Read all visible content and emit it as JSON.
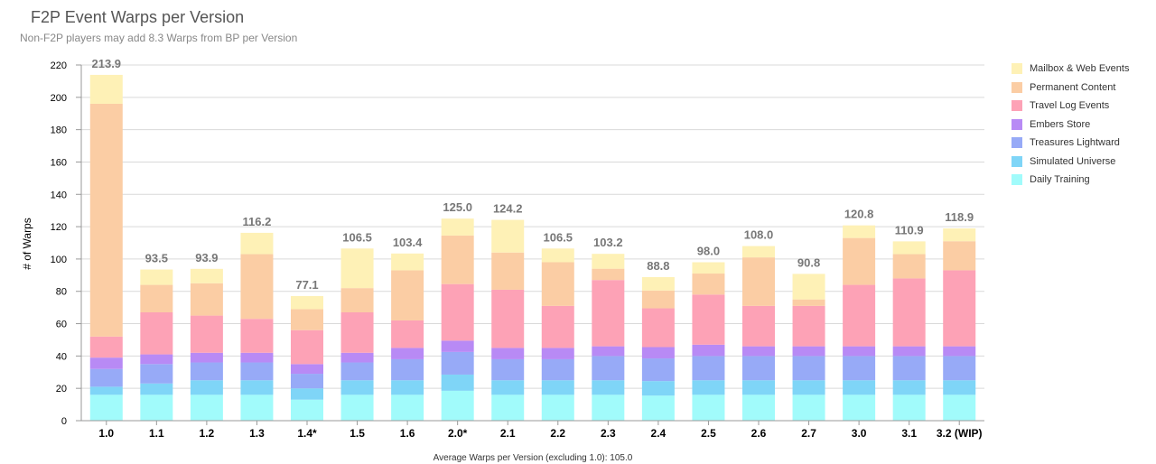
{
  "chart_data": {
    "type": "bar",
    "stacked": true,
    "title": "F2P Event Warps per Version",
    "subtitle": "Non-F2P players may add 8.3 Warps from BP per Version",
    "ylabel": "# of Warps",
    "footer": "Average Warps per Version (excluding 1.0): 105.0",
    "ylim": [
      0,
      220
    ],
    "yticks": [
      0,
      20,
      40,
      60,
      80,
      100,
      120,
      140,
      160,
      180,
      200,
      220
    ],
    "grid": true,
    "legend_position": "right",
    "categories": [
      "1.0",
      "1.1",
      "1.2",
      "1.3",
      "1.4*",
      "1.5",
      "1.6",
      "2.0*",
      "2.1",
      "2.2",
      "2.3",
      "2.4",
      "2.5",
      "2.6",
      "2.7",
      "3.0",
      "3.1",
      "3.2 (WIP)"
    ],
    "totals": [
      "213.9",
      "93.5",
      "93.9",
      "116.2",
      "77.1",
      "106.5",
      "103.4",
      "125.0",
      "124.2",
      "106.5",
      "103.2",
      "88.8",
      "98.0",
      "108.0",
      "90.8",
      "120.8",
      "110.9",
      "118.9"
    ],
    "series": [
      {
        "name": "Daily Training",
        "color": "#a1fbfb",
        "values": [
          16,
          16,
          16,
          16,
          13,
          16,
          16,
          18.5,
          16,
          16,
          16,
          15.5,
          16,
          16,
          16,
          16,
          16,
          16
        ]
      },
      {
        "name": "Simulated Universe",
        "color": "#7fd5f7",
        "values": [
          5,
          7,
          9,
          9,
          7,
          9,
          9,
          10,
          9,
          9,
          9,
          9,
          9,
          9,
          9,
          9,
          9,
          9
        ]
      },
      {
        "name": "Treasures Lightward",
        "color": "#97aaf7",
        "values": [
          11,
          12,
          11,
          11,
          9,
          11,
          13,
          14,
          13,
          13,
          15,
          14,
          15,
          15,
          15,
          15,
          15,
          15
        ]
      },
      {
        "name": "Embers Store",
        "color": "#b88af5",
        "values": [
          7,
          6,
          6,
          6,
          6,
          6,
          7,
          7,
          7,
          7,
          6,
          7,
          7,
          6,
          6,
          6,
          6,
          6
        ]
      },
      {
        "name": "Travel Log Events",
        "color": "#fda2b6",
        "values": [
          13,
          26,
          23,
          21,
          21,
          25,
          17,
          35,
          36,
          26,
          41,
          24,
          31,
          25,
          25,
          38,
          42,
          47
        ]
      },
      {
        "name": "Permanent Content",
        "color": "#fbcda4",
        "values": [
          144,
          17,
          20,
          40,
          13,
          15,
          31,
          30,
          23,
          27,
          7,
          11,
          13,
          30,
          4,
          29,
          15,
          18
        ]
      },
      {
        "name": "Mailbox & Web Events",
        "color": "#fef1b6",
        "values": [
          17.9,
          9.5,
          8.9,
          13.2,
          8.1,
          24.5,
          10.4,
          10.5,
          20.2,
          8.5,
          9.2,
          8.3,
          7,
          7,
          15.8,
          7.8,
          7.9,
          7.9
        ]
      }
    ]
  }
}
